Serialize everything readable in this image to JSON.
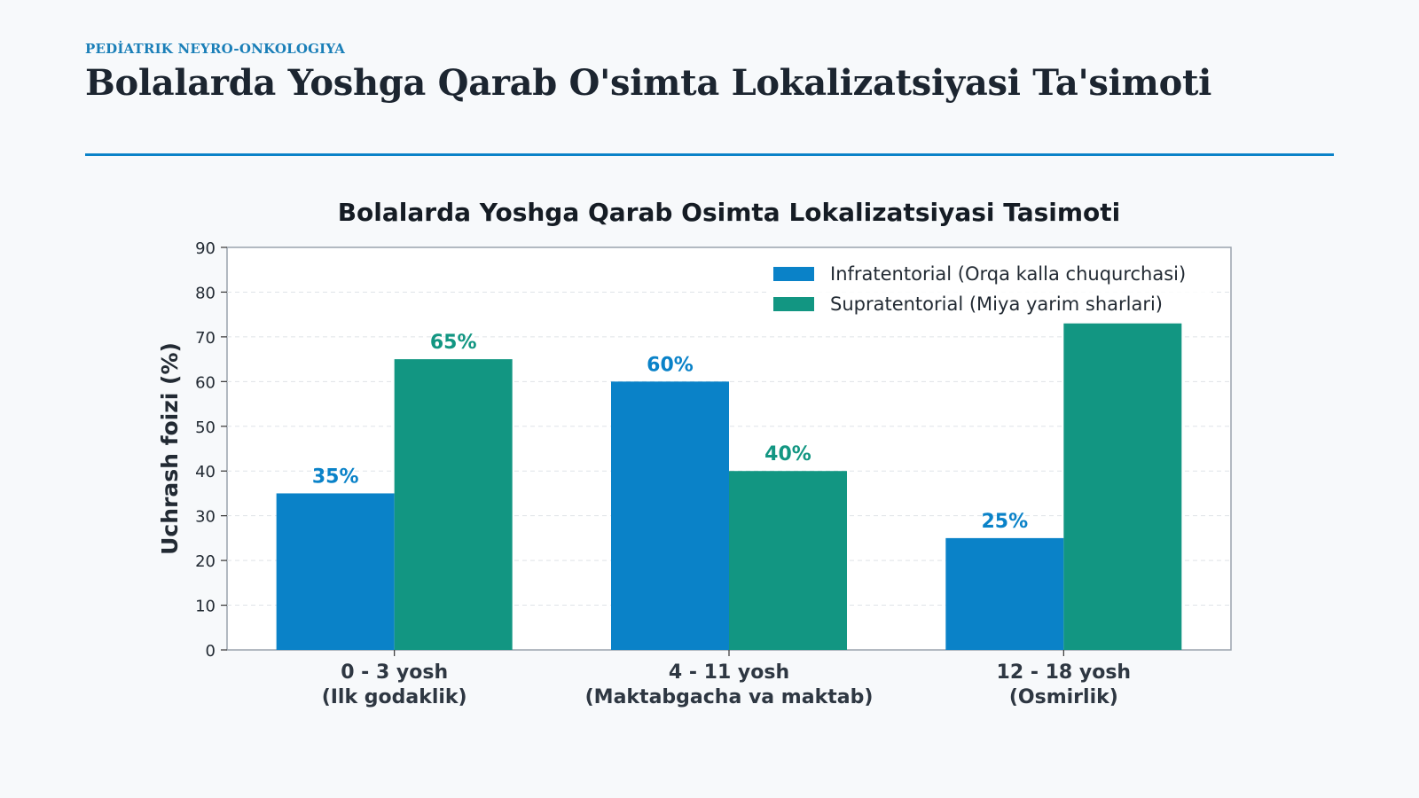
{
  "header": {
    "eyebrow": "PEDİATRIK NEYRO-ONKOLOGIYA",
    "title": "Bolalarda Yoshga Qarab O'simta Lokalizatsiyasi Ta'simoti"
  },
  "colors": {
    "infratentorial": "#0a82c8",
    "supratentorial": "#129682",
    "accent": "#0a82c8",
    "grid": "#dfe3e8"
  },
  "chart_data": {
    "type": "bar",
    "title": "Bolalarda Yoshga Qarab Osimta Lokalizatsiyasi Tasimoti",
    "xlabel": "",
    "ylabel": "Uchrash foizi (%)",
    "ylim": [
      0,
      90
    ],
    "yticks": [
      0,
      10,
      20,
      30,
      40,
      50,
      60,
      70,
      80,
      90
    ],
    "grid": true,
    "legend_position": "top-right",
    "categories": [
      [
        "0 - 3 yosh",
        "(Ilk godaklik)"
      ],
      [
        "4 - 11 yosh",
        "(Maktabgacha va maktab)"
      ],
      [
        "12 - 18 yosh",
        "(Osmirlik)"
      ]
    ],
    "series": [
      {
        "name": "Infratentorial (Orqa kalla chuqurchasi)",
        "values": [
          35,
          60,
          25
        ],
        "labels": [
          "35%",
          "60%",
          "25%"
        ]
      },
      {
        "name": "Supratentorial (Miya yarim sharlari)",
        "values": [
          65,
          40,
          73
        ],
        "labels": [
          "65%",
          "40%",
          ""
        ]
      }
    ]
  }
}
